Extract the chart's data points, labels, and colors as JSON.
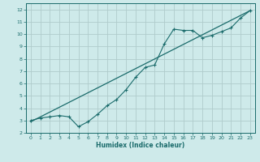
{
  "xlabel": "Humidex (Indice chaleur)",
  "bg_color": "#ceeaea",
  "grid_color": "#b0cccc",
  "line_color": "#1a6b6b",
  "xlim": [
    -0.5,
    23.5
  ],
  "ylim": [
    2,
    12.5
  ],
  "xticks": [
    0,
    1,
    2,
    3,
    4,
    5,
    6,
    7,
    8,
    9,
    10,
    11,
    12,
    13,
    14,
    15,
    16,
    17,
    18,
    19,
    20,
    21,
    22,
    23
  ],
  "yticks": [
    2,
    3,
    4,
    5,
    6,
    7,
    8,
    9,
    10,
    11,
    12
  ],
  "line1_x": [
    0,
    1,
    2,
    3,
    4,
    5,
    6,
    7,
    8,
    9,
    10,
    11,
    12,
    13,
    14,
    15,
    16,
    17,
    18,
    19,
    20,
    21,
    22,
    23
  ],
  "line1_y": [
    3.0,
    3.2,
    3.3,
    3.4,
    3.3,
    2.5,
    2.9,
    3.5,
    4.2,
    4.7,
    5.5,
    6.5,
    7.3,
    7.5,
    9.2,
    10.4,
    10.3,
    10.3,
    9.7,
    9.9,
    10.2,
    10.5,
    11.3,
    11.9
  ],
  "line2_x": [
    0,
    23
  ],
  "line2_y": [
    2.9,
    11.9
  ]
}
